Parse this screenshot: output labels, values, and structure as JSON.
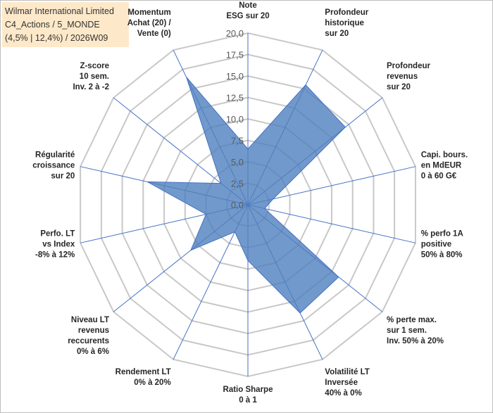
{
  "header": {
    "line1": "Wilmar International Limited",
    "line2": "C4_Actions / 5_MONDE",
    "line3": "(4,5% | 12,4%) / 2026W09"
  },
  "colors": {
    "fill": "#4f7fbe",
    "fill_opacity": 0.8,
    "series_stroke": "#4472c4",
    "spokes": "#4472c4",
    "grid": "#c8c8c8",
    "header_bg": "#fde9c9"
  },
  "chart_data": {
    "type": "radar",
    "title": "",
    "rmin": 0,
    "rmax": 20,
    "tick_labels": [
      "0,0",
      "2,5",
      "5,0",
      "7,5",
      "10,0",
      "12,5",
      "15,0",
      "17,5",
      "20,0"
    ],
    "grid": true,
    "legend": "none",
    "axes": [
      [
        "Note",
        "ESG sur 20"
      ],
      [
        "Profondeur",
        "historique",
        "sur 20"
      ],
      [
        "Profondeur",
        "revenus",
        "sur 20"
      ],
      [
        "Capi. bours.",
        "en MdEUR",
        "0 à 60 G€"
      ],
      [
        "% perfo 1A",
        "positive",
        "50% à 80%"
      ],
      [
        "% perte max.",
        "sur 1 sem.",
        "Inv. 50% à 20%"
      ],
      [
        "Volatilité LT",
        "Inversée",
        "40% à 0%"
      ],
      [
        "Ratio Sharpe",
        "0 à 1"
      ],
      [
        "Rendement LT",
        "0% à 20%"
      ],
      [
        "Niveau LT",
        "revenus",
        "reccurents",
        "0% à 6%"
      ],
      [
        "Perfo. LT",
        "vs Index",
        "-8% à 12%"
      ],
      [
        "Régularité",
        "croissance",
        "sur 20"
      ],
      [
        "Z-score",
        "10 sem.",
        "Inv. 2 à -2"
      ],
      [
        "Momentum",
        "Achat (20) /",
        "Vente (0)"
      ]
    ],
    "series": [
      {
        "values": [
          6.5,
          15.5,
          14.5,
          3.0,
          2.0,
          13.5,
          14.0,
          6.5,
          3.5,
          8.5,
          5.0,
          12.0,
          4.0,
          16.5
        ]
      }
    ]
  }
}
